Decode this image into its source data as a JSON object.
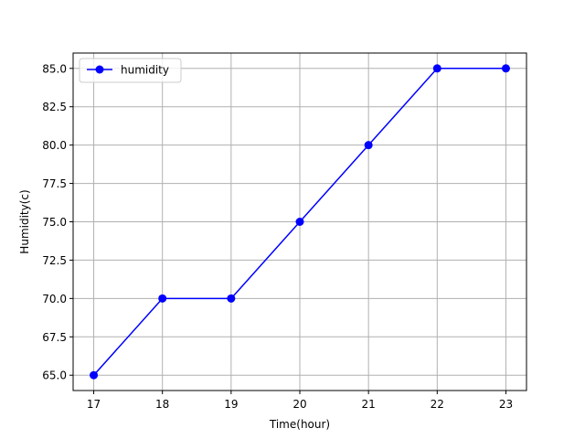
{
  "chart_data": {
    "type": "line",
    "title": "",
    "xlabel": "Time(hour)",
    "ylabel": "Humidity(c)",
    "x": [
      17,
      18,
      19,
      20,
      21,
      22,
      23
    ],
    "series": [
      {
        "name": "humidity",
        "values": [
          65,
          70,
          70,
          75,
          80,
          85,
          85
        ],
        "color": "#0000ff",
        "marker": "circle"
      }
    ],
    "xlim": [
      16.7,
      23.3
    ],
    "ylim": [
      64,
      86
    ],
    "xticks": [
      "17",
      "18",
      "19",
      "20",
      "21",
      "22",
      "23"
    ],
    "yticks": [
      "65.0",
      "67.5",
      "70.0",
      "72.5",
      "75.0",
      "77.5",
      "80.0",
      "82.5",
      "85.0"
    ],
    "grid": true,
    "legend_position": "top-left"
  }
}
